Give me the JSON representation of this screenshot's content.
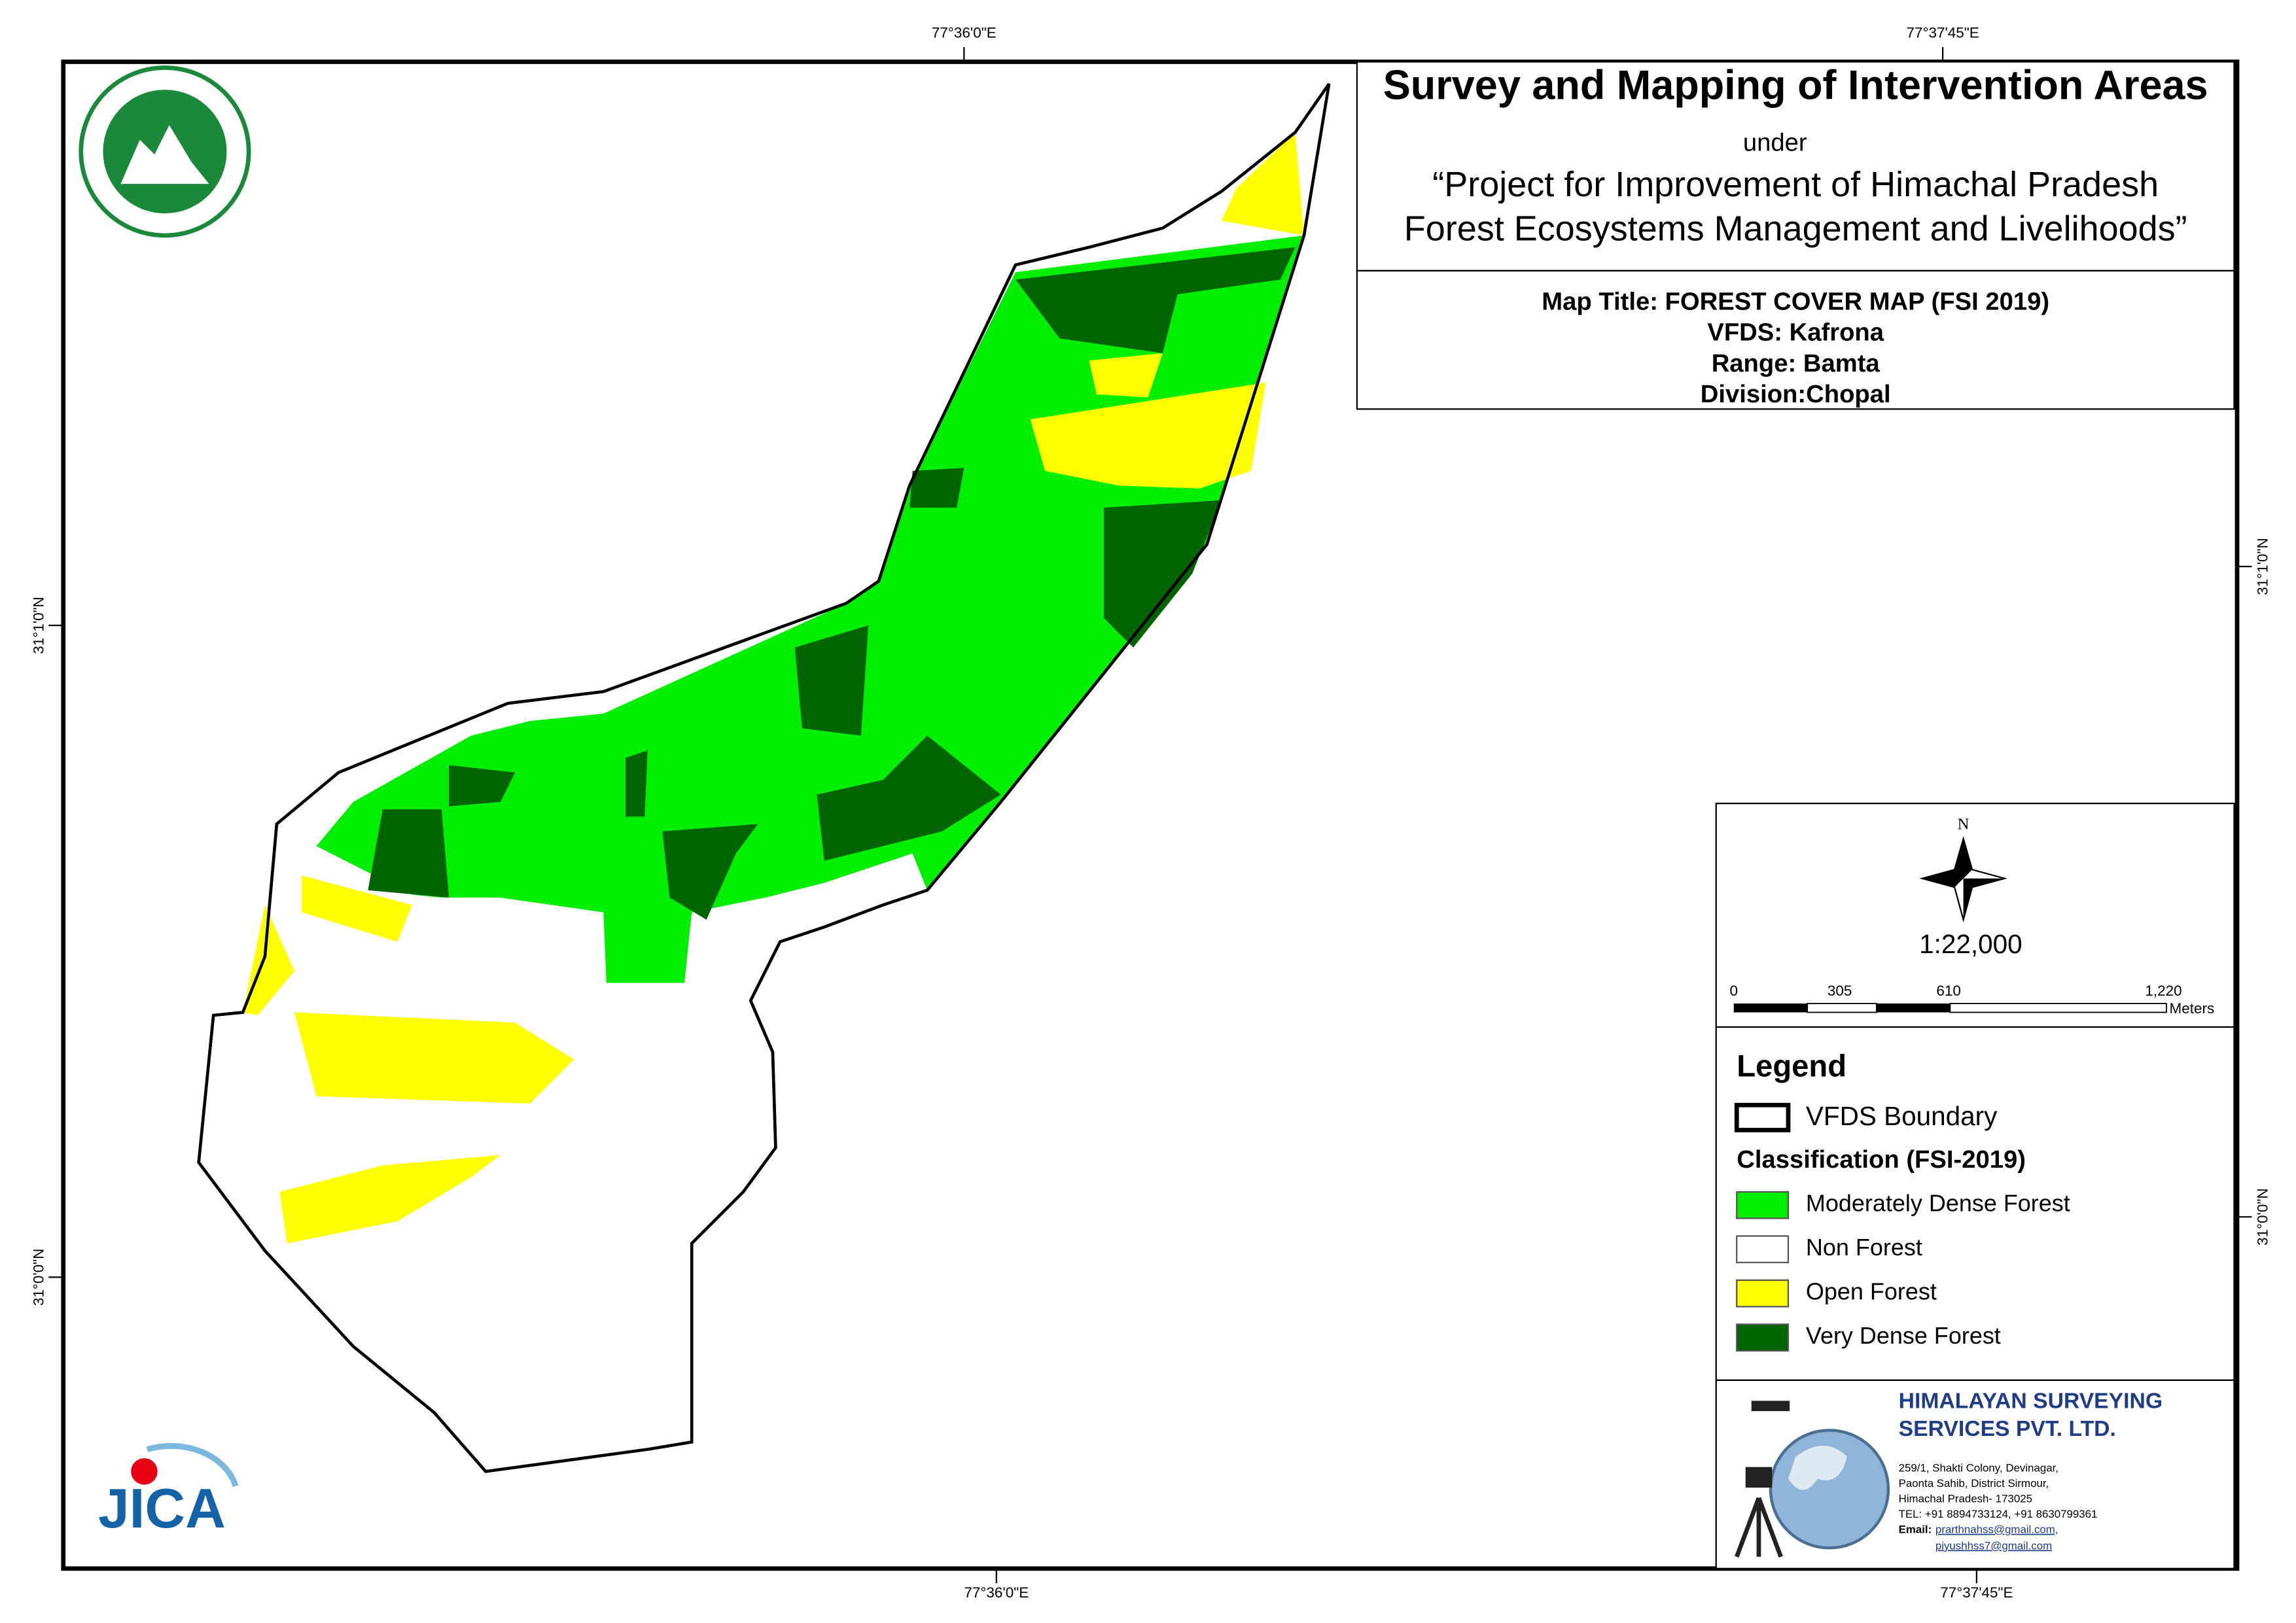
{
  "grid_labels": {
    "top": [
      "77°36'0\"E",
      "77°37'45\"E"
    ],
    "bottom": [
      "77°36'0\"E",
      "77°37'45\"E"
    ],
    "left": [
      "31°1'0\"N",
      "31°0'0\"N"
    ],
    "right": [
      "31°1'0\"N",
      "31°0'0\"N"
    ]
  },
  "header": {
    "title": "Survey and Mapping of Intervention Areas",
    "under": "under",
    "project_line1": "“Project for Improvement of Himachal Pradesh",
    "project_line2": "Forest Ecosystems Management and Livelihoods”"
  },
  "map_info": {
    "map_title": "Map Title: FOREST COVER MAP (FSI 2019)",
    "vfds": "VFDS: Kafrona",
    "range": "Range: Bamta",
    "division": "Division:Chopal"
  },
  "north": "N",
  "scale": "1:22,000",
  "scale_bar": {
    "labels": [
      "0",
      "305",
      "610",
      "1,220"
    ],
    "unit": "Meters"
  },
  "legend": {
    "title": "Legend",
    "boundary": "VFDS Boundary",
    "classification_title": "Classification (FSI-2019)",
    "classes": [
      {
        "label": "Moderately Dense Forest",
        "color": "#00ee00"
      },
      {
        "label": "Non Forest",
        "color": "#ffffff"
      },
      {
        "label": "Open Forest",
        "color": "#ffff00"
      },
      {
        "label": "Very Dense Forest",
        "color": "#006400"
      }
    ]
  },
  "jica_logo": "JICA",
  "company": {
    "name_line1": "HIMALAYAN SURVEYING",
    "name_line2": "SERVICES PVT. LTD.",
    "address": [
      "259/1, Shakti Colony, Devinagar,",
      "Paonta Sahib, District Sirmour,",
      "Himachal Pradesh- 173025",
      "TEL: +91 8894733124, +91 8630799361"
    ],
    "email_label": "Email:",
    "emails": [
      "prarthnahss@gmail.com,",
      "piyushhss7@gmail.com"
    ]
  }
}
